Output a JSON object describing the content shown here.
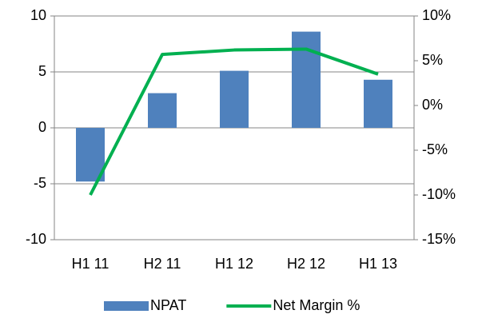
{
  "chart_data": {
    "type": "bar",
    "categories": [
      "H1 11",
      "H2 11",
      "H1 12",
      "H2 12",
      "H1 13"
    ],
    "series": [
      {
        "name": "NPAT",
        "type": "bar",
        "color": "#4f81bd",
        "values": [
          -4.8,
          3.1,
          5.1,
          8.6,
          4.3
        ]
      },
      {
        "name": "Net Margin %",
        "type": "line",
        "axis": "y2",
        "color": "#00b050",
        "values": [
          -10,
          5.7,
          6.2,
          6.3,
          3.5
        ]
      }
    ],
    "ylim": [
      -10,
      10
    ],
    "yticks": [
      -10,
      -5,
      0,
      5,
      10
    ],
    "y2lim": [
      -15,
      10
    ],
    "y2ticks": [
      {
        "value": -15,
        "label": "-15%"
      },
      {
        "value": -10,
        "label": "-10%"
      },
      {
        "value": -5,
        "label": "-5%"
      },
      {
        "value": 0,
        "label": "0%"
      },
      {
        "value": 5,
        "label": "5%"
      },
      {
        "value": 10,
        "label": "10%"
      }
    ],
    "grid": true,
    "legend": "bottom"
  }
}
